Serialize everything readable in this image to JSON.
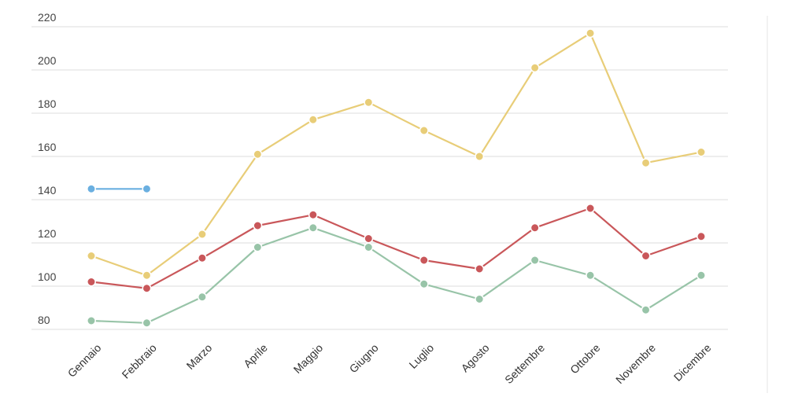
{
  "chart_data": {
    "type": "line",
    "categories": [
      "Gennaio",
      "Febbraio",
      "Marzo",
      "Aprile",
      "Maggio",
      "Giugno",
      "Luglio",
      "Agosto",
      "Settembre",
      "Ottobre",
      "Novembre",
      "Dicembre"
    ],
    "y_ticks": [
      80,
      100,
      120,
      140,
      160,
      180,
      200,
      220
    ],
    "ylim": [
      80,
      220
    ],
    "grid": true,
    "series": [
      {
        "color": "#e8cd78",
        "values": [
          114,
          105,
          124,
          161,
          177,
          185,
          172,
          160,
          201,
          217,
          157,
          162
        ]
      },
      {
        "color": "#c9575a",
        "values": [
          102,
          99,
          113,
          128,
          133,
          122,
          112,
          108,
          127,
          136,
          114,
          123
        ]
      },
      {
        "color": "#98c4a8",
        "values": [
          84,
          83,
          95,
          118,
          127,
          118,
          101,
          94,
          112,
          105,
          89,
          105
        ]
      },
      {
        "color": "#6aafe0",
        "values": [
          145,
          145,
          null,
          null,
          null,
          null,
          null,
          null,
          null,
          null,
          null,
          null
        ]
      }
    ]
  }
}
